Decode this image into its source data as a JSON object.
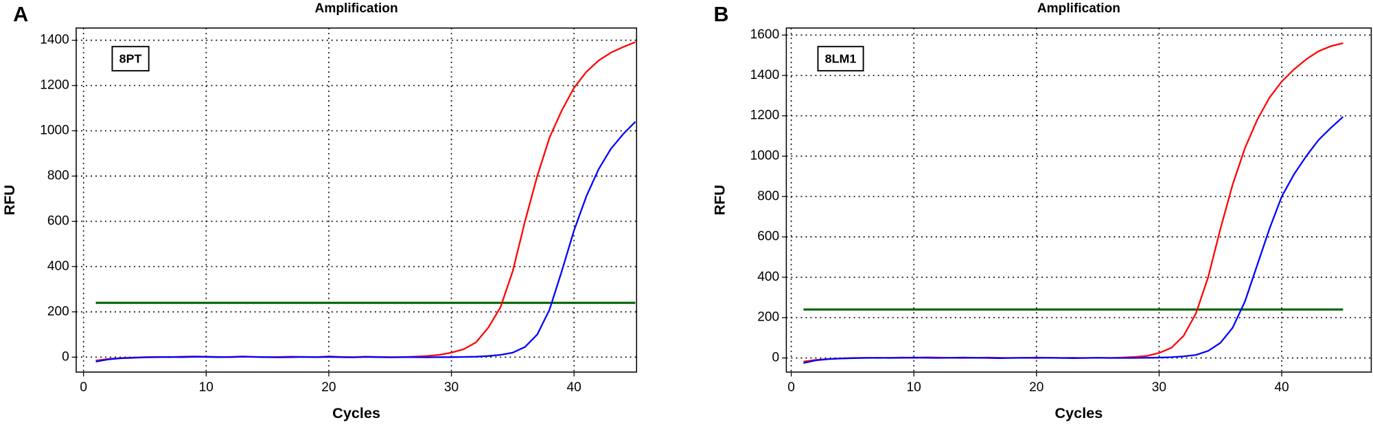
{
  "chart_data": [
    {
      "type": "line",
      "label": "A",
      "title": "Amplification",
      "xlabel": "Cycles",
      "ylabel": "RFU",
      "annotation": "8PT",
      "x": [
        1,
        2,
        3,
        4,
        5,
        6,
        7,
        8,
        9,
        10,
        11,
        12,
        13,
        14,
        15,
        16,
        17,
        18,
        19,
        20,
        21,
        22,
        23,
        24,
        25,
        26,
        27,
        28,
        29,
        30,
        31,
        32,
        33,
        34,
        35,
        36,
        37,
        38,
        39,
        40,
        41,
        42,
        43,
        44,
        45
      ],
      "series": [
        {
          "color": "#ff0000",
          "values": [
            -15,
            -8,
            -4,
            -2,
            0,
            1,
            0,
            2,
            3,
            2,
            1,
            0,
            2,
            1,
            0,
            1,
            2,
            1,
            0,
            3,
            1,
            0,
            2,
            1,
            0,
            0,
            2,
            5,
            10,
            20,
            35,
            65,
            130,
            220,
            380,
            600,
            800,
            970,
            1090,
            1190,
            1260,
            1310,
            1345,
            1370,
            1392
          ]
        },
        {
          "color": "#0000ff",
          "values": [
            -20,
            -10,
            -5,
            -3,
            -1,
            0,
            1,
            0,
            2,
            1,
            0,
            1,
            3,
            1,
            0,
            -1,
            0,
            1,
            0,
            1,
            0,
            -1,
            1,
            0,
            -1,
            0,
            0,
            -1,
            0,
            0,
            1,
            2,
            5,
            10,
            20,
            45,
            100,
            210,
            380,
            560,
            710,
            830,
            920,
            985,
            1040
          ]
        }
      ],
      "threshold": {
        "value": 240,
        "color": "#006400"
      },
      "xlim": [
        -0.6,
        45.1
      ],
      "ylim": [
        -66,
        1454
      ],
      "xticks": [
        0,
        10,
        20,
        30,
        40
      ],
      "yticks": [
        0,
        200,
        400,
        600,
        800,
        1000,
        1200,
        1400
      ],
      "grid": true
    },
    {
      "type": "line",
      "label": "B",
      "title": "Amplification",
      "xlabel": "Cycles",
      "ylabel": "RFU",
      "annotation": "8LM1",
      "x": [
        1,
        2,
        3,
        4,
        5,
        6,
        7,
        8,
        9,
        10,
        11,
        12,
        13,
        14,
        15,
        16,
        17,
        18,
        19,
        20,
        21,
        22,
        23,
        24,
        25,
        26,
        27,
        28,
        29,
        30,
        31,
        32,
        33,
        34,
        35,
        36,
        37,
        38,
        39,
        40,
        41,
        42,
        43,
        44,
        45
      ],
      "series": [
        {
          "color": "#ff0000",
          "values": [
            -18,
            -10,
            -5,
            -2,
            0,
            1,
            0,
            1,
            2,
            1,
            3,
            2,
            1,
            0,
            1,
            2,
            1,
            0,
            1,
            2,
            1,
            0,
            1,
            0,
            1,
            0,
            2,
            5,
            10,
            25,
            50,
            110,
            220,
            400,
            640,
            860,
            1040,
            1180,
            1290,
            1370,
            1430,
            1480,
            1520,
            1545,
            1560
          ]
        },
        {
          "color": "#0000ff",
          "values": [
            -25,
            -12,
            -6,
            -3,
            -1,
            0,
            1,
            0,
            1,
            2,
            1,
            0,
            1,
            2,
            1,
            0,
            -1,
            0,
            1,
            0,
            1,
            0,
            -1,
            0,
            1,
            0,
            0,
            0,
            1,
            2,
            4,
            8,
            15,
            35,
            75,
            150,
            280,
            460,
            640,
            800,
            910,
            1000,
            1080,
            1140,
            1195
          ]
        }
      ],
      "threshold": {
        "value": 240,
        "color": "#006400"
      },
      "xlim": [
        -0.4,
        47.3
      ],
      "ylim": [
        -70,
        1635
      ],
      "xticks": [
        0,
        10,
        20,
        30,
        40
      ],
      "yticks": [
        0,
        200,
        400,
        600,
        800,
        1000,
        1200,
        1400,
        1600
      ],
      "grid": true
    }
  ]
}
